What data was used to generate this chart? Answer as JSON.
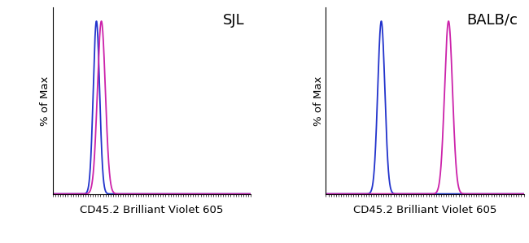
{
  "panel1_label": "SJL",
  "panel2_label": "BALB/c",
  "xlabel": "CD45.2 Brilliant Violet 605",
  "ylabel": "% of Max",
  "blue_color": "#2233CC",
  "magenta_color": "#CC22AA",
  "background_color": "#ffffff",
  "panel1_blue_mean": 0.22,
  "panel1_blue_std": 0.016,
  "panel1_magenta_mean": 0.245,
  "panel1_magenta_std": 0.02,
  "panel2_blue_mean": 0.28,
  "panel2_blue_std": 0.018,
  "panel2_magenta_mean": 0.62,
  "panel2_magenta_std": 0.02,
  "xmin": 0.0,
  "xmax": 1.0,
  "ymin": 0.0,
  "ymax": 1.08,
  "label_fontsize": 9.5,
  "panel_label_fontsize": 13,
  "line_width": 1.3,
  "n_ticks": 80
}
